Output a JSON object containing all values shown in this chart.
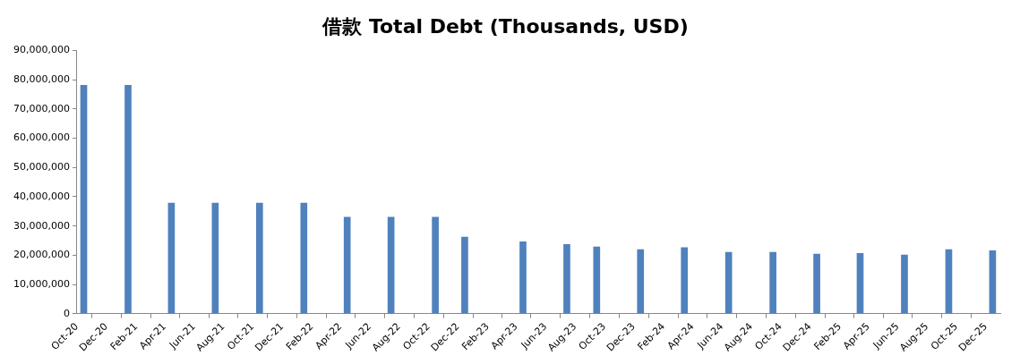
{
  "chart_data": {
    "type": "bar",
    "title": "借款 Total Debt (Thousands, USD)",
    "x": [
      "2020-10-15",
      "2021-01-15",
      "2021-04-15",
      "2021-07-15",
      "2021-10-15",
      "2022-01-15",
      "2022-04-15",
      "2022-07-15",
      "2022-10-15",
      "2022-12-15",
      "2023-04-15",
      "2023-07-15",
      "2023-09-15",
      "2023-12-15",
      "2024-03-15",
      "2024-06-15",
      "2024-09-15",
      "2024-12-15",
      "2025-03-15",
      "2025-06-15",
      "2025-09-15",
      "2025-12-15"
    ],
    "values": [
      78100000,
      78100000,
      37800000,
      37800000,
      37800000,
      37800000,
      33000000,
      33000000,
      33000000,
      26200000,
      24600000,
      23700000,
      22800000,
      21900000,
      22600000,
      21000000,
      21000000,
      20400000,
      20600000,
      20100000,
      21900000,
      21500000
    ],
    "color": "#4f81bd",
    "xlim": [
      "2020-10-01",
      "2025-12-31"
    ],
    "xticks": [
      {
        "value": "2020-10-01",
        "label": "Oct-20"
      },
      {
        "value": "2020-12-01",
        "label": "Dec-20"
      },
      {
        "value": "2021-02-01",
        "label": "Feb-21"
      },
      {
        "value": "2021-04-01",
        "label": "Apr-21"
      },
      {
        "value": "2021-06-01",
        "label": "Jun-21"
      },
      {
        "value": "2021-08-01",
        "label": "Aug-21"
      },
      {
        "value": "2021-10-01",
        "label": "Oct-21"
      },
      {
        "value": "2021-12-01",
        "label": "Dec-21"
      },
      {
        "value": "2022-02-01",
        "label": "Feb-22"
      },
      {
        "value": "2022-04-01",
        "label": "Apr-22"
      },
      {
        "value": "2022-06-01",
        "label": "Jun-22"
      },
      {
        "value": "2022-08-01",
        "label": "Aug-22"
      },
      {
        "value": "2022-10-01",
        "label": "Oct-22"
      },
      {
        "value": "2022-12-01",
        "label": "Dec-22"
      },
      {
        "value": "2023-02-01",
        "label": "Feb-23"
      },
      {
        "value": "2023-04-01",
        "label": "Apr-23"
      },
      {
        "value": "2023-06-01",
        "label": "Jun-23"
      },
      {
        "value": "2023-08-01",
        "label": "Aug-23"
      },
      {
        "value": "2023-10-01",
        "label": "Oct-23"
      },
      {
        "value": "2023-12-01",
        "label": "Dec-23"
      },
      {
        "value": "2024-02-01",
        "label": "Feb-24"
      },
      {
        "value": "2024-04-01",
        "label": "Apr-24"
      },
      {
        "value": "2024-06-01",
        "label": "Jun-24"
      },
      {
        "value": "2024-08-01",
        "label": "Aug-24"
      },
      {
        "value": "2024-10-01",
        "label": "Oct-24"
      },
      {
        "value": "2024-12-01",
        "label": "Dec-24"
      },
      {
        "value": "2025-02-01",
        "label": "Feb-25"
      },
      {
        "value": "2025-04-01",
        "label": "Apr-25"
      },
      {
        "value": "2025-06-01",
        "label": "Jun-25"
      },
      {
        "value": "2025-08-01",
        "label": "Aug-25"
      },
      {
        "value": "2025-10-01",
        "label": "Oct-25"
      },
      {
        "value": "2025-12-01",
        "label": "Dec-25"
      }
    ],
    "ylim": [
      0,
      90000000
    ],
    "yticks": [
      {
        "value": 0,
        "label": "0"
      },
      {
        "value": 10000000,
        "label": "10,000,000"
      },
      {
        "value": 20000000,
        "label": "20,000,000"
      },
      {
        "value": 30000000,
        "label": "30,000,000"
      },
      {
        "value": 40000000,
        "label": "40,000,000"
      },
      {
        "value": 50000000,
        "label": "50,000,000"
      },
      {
        "value": 60000000,
        "label": "60,000,000"
      },
      {
        "value": 70000000,
        "label": "70,000,000"
      },
      {
        "value": 80000000,
        "label": "80,000,000"
      },
      {
        "value": 90000000,
        "label": "90,000,000"
      }
    ],
    "grid": false,
    "legend": false
  }
}
